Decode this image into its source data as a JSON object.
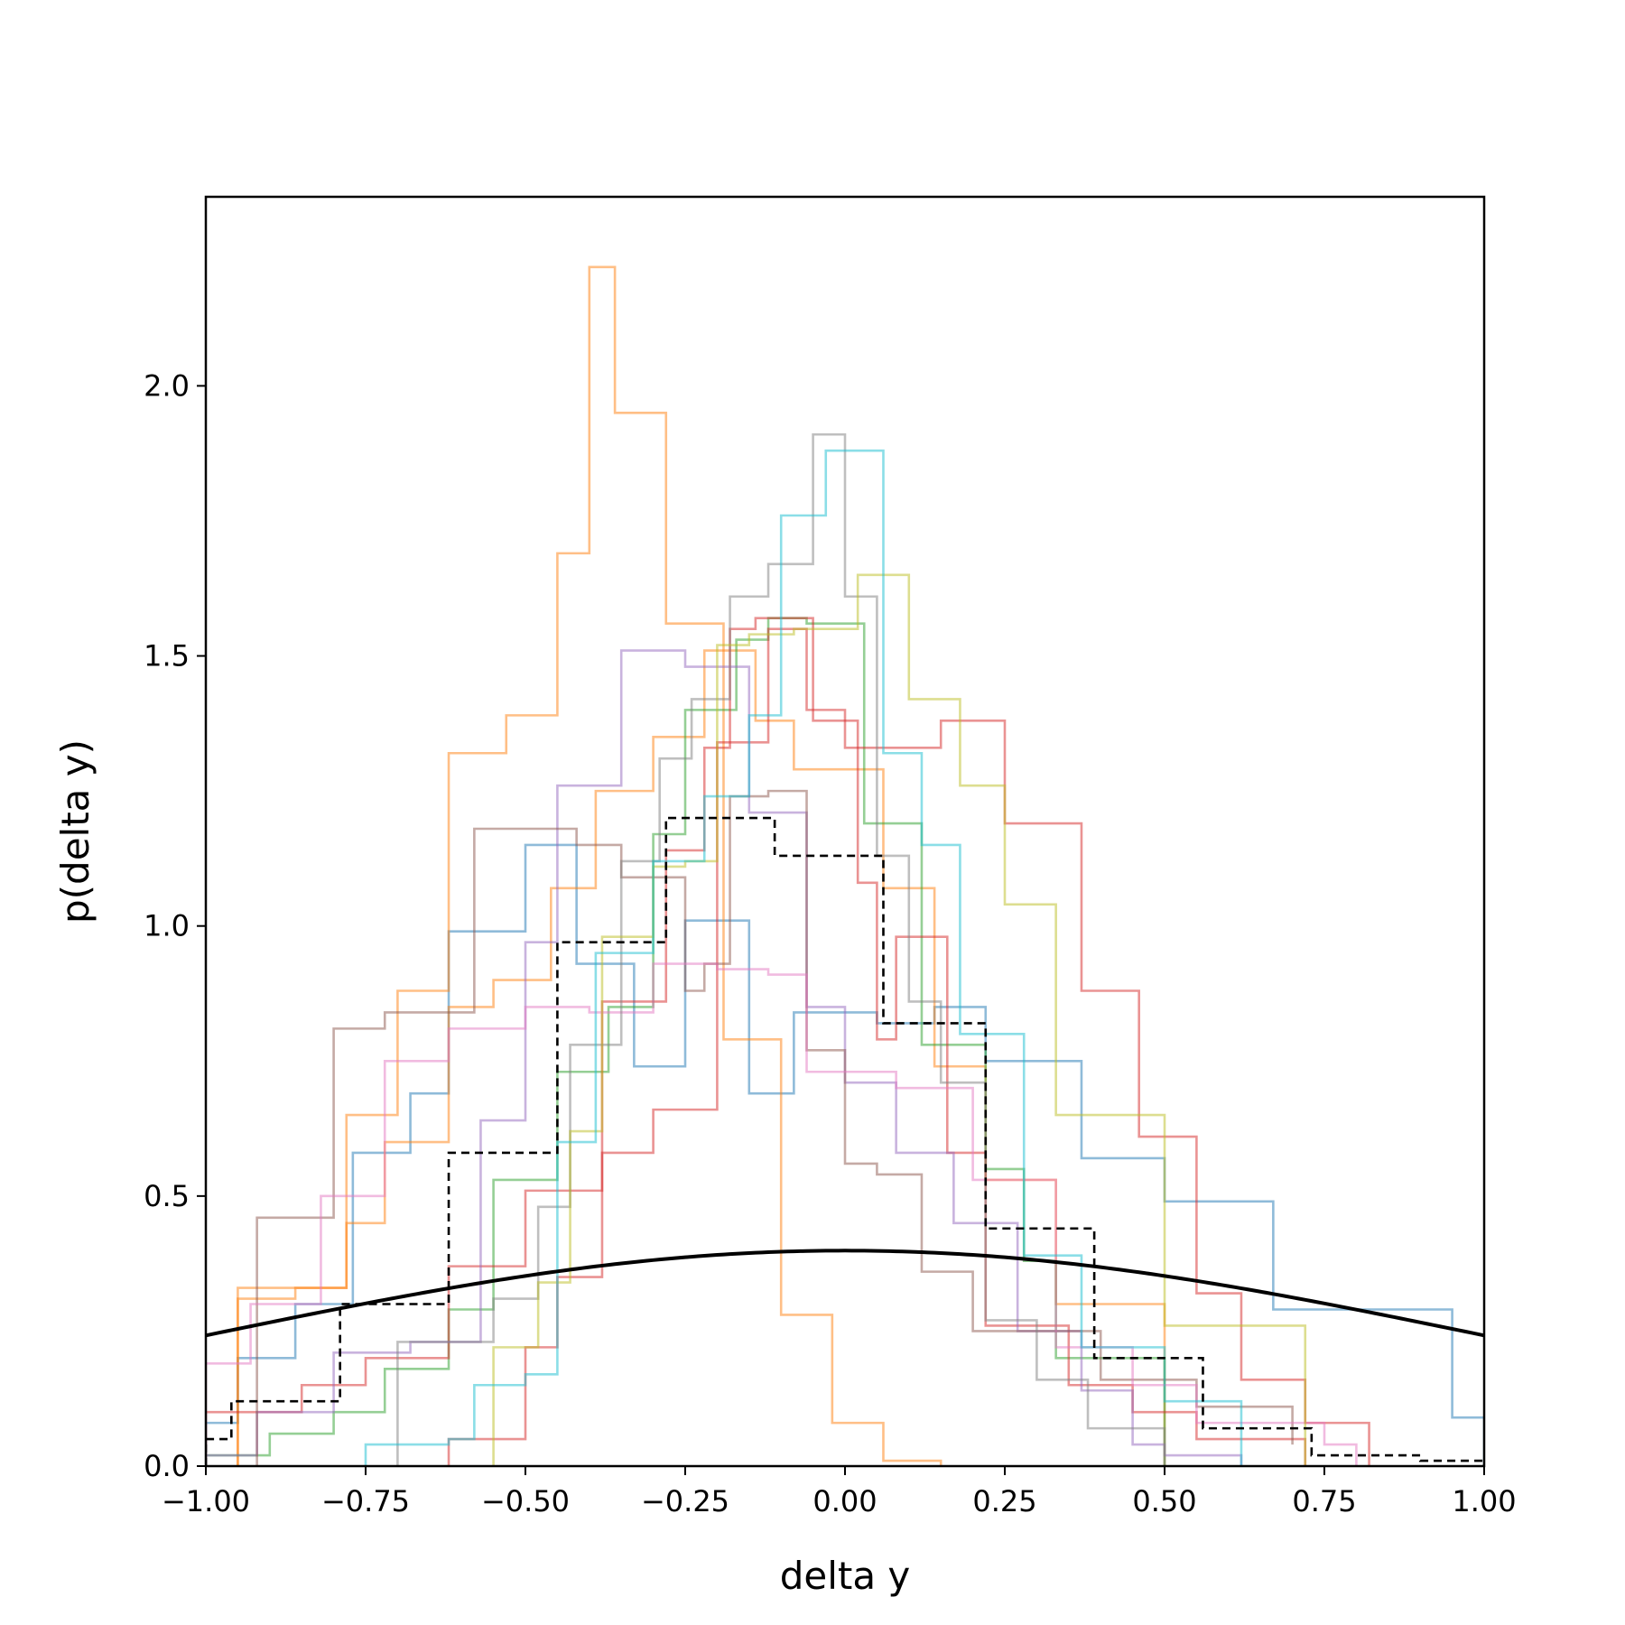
{
  "chart_data": {
    "type": "line",
    "title": "",
    "xlabel": "delta y",
    "ylabel": "p(delta y)",
    "xlim": [
      -1.0,
      1.0
    ],
    "ylim": [
      0.0,
      2.35
    ],
    "grid": false,
    "x_ticks": [
      "−1.00",
      "−0.75",
      "−0.50",
      "−0.25",
      "0.00",
      "0.25",
      "0.50",
      "0.75",
      "1.00"
    ],
    "y_ticks": [
      "0.0",
      "0.5",
      "1.0",
      "1.5",
      "2.0"
    ],
    "series": [
      {
        "style": "step",
        "color": "#1f77b4",
        "edges": [
          -1.0,
          -0.95,
          -0.86,
          -0.77,
          -0.68,
          -0.62,
          -0.5,
          -0.42,
          -0.33,
          -0.25,
          -0.15,
          -0.08,
          0.05,
          0.14,
          0.22,
          0.37,
          0.5,
          0.67,
          0.95,
          1.0
        ],
        "values": [
          0.08,
          0.2,
          0.3,
          0.58,
          0.69,
          0.99,
          1.15,
          0.93,
          0.74,
          1.01,
          0.69,
          0.84,
          0.82,
          0.85,
          0.75,
          0.57,
          0.49,
          0.29,
          0.09
        ]
      },
      {
        "style": "step",
        "color": "#ff7f0e",
        "edges": [
          -0.95,
          -0.78,
          -0.7,
          -0.62,
          -0.53,
          -0.45,
          -0.4,
          -0.36,
          -0.28,
          -0.19,
          -0.1,
          -0.02,
          0.06,
          0.15
        ],
        "values": [
          0.33,
          0.65,
          0.88,
          1.32,
          1.39,
          1.69,
          2.22,
          1.95,
          1.56,
          0.79,
          0.28,
          0.08,
          0.01
        ]
      },
      {
        "style": "step",
        "color": "#ff7f0e",
        "edges": [
          -0.95,
          -0.86,
          -0.78,
          -0.72,
          -0.62,
          -0.55,
          -0.46,
          -0.39,
          -0.3,
          -0.22,
          -0.14,
          -0.08,
          0.06,
          0.14,
          0.22,
          0.33,
          0.5
        ],
        "values": [
          0.31,
          0.33,
          0.45,
          0.6,
          0.85,
          0.9,
          1.07,
          1.25,
          1.35,
          1.51,
          1.38,
          1.29,
          1.07,
          0.74,
          0.53,
          0.3
        ]
      },
      {
        "style": "step",
        "color": "#2ca02c",
        "edges": [
          -1.0,
          -0.9,
          -0.8,
          -0.72,
          -0.62,
          -0.55,
          -0.45,
          -0.37,
          -0.3,
          -0.25,
          -0.17,
          -0.12,
          -0.06,
          0.03,
          0.12,
          0.22,
          0.28,
          0.33,
          0.5
        ],
        "values": [
          0.02,
          0.06,
          0.1,
          0.18,
          0.29,
          0.53,
          0.73,
          0.85,
          1.17,
          1.4,
          1.53,
          1.57,
          1.56,
          1.19,
          0.78,
          0.55,
          0.38,
          0.2
        ]
      },
      {
        "style": "step",
        "color": "#d62728",
        "edges": [
          -1.0,
          -0.85,
          -0.75,
          -0.62,
          -0.5,
          -0.38,
          -0.28,
          -0.22,
          -0.18,
          -0.14,
          -0.05,
          0.02,
          0.05,
          0.08,
          0.16,
          0.22,
          0.35,
          0.45,
          0.55,
          0.72
        ],
        "values": [
          0.1,
          0.15,
          0.2,
          0.37,
          0.51,
          0.86,
          1.14,
          1.33,
          1.55,
          1.57,
          1.38,
          1.08,
          0.79,
          0.98,
          0.58,
          0.26,
          0.15,
          0.1,
          0.05
        ]
      },
      {
        "style": "step",
        "color": "#d62728",
        "edges": [
          -0.62,
          -0.5,
          -0.45,
          -0.38,
          -0.3,
          -0.2,
          -0.12,
          -0.06,
          0.0,
          0.07,
          0.15,
          0.25,
          0.37,
          0.46,
          0.55,
          0.62,
          0.72,
          0.82
        ],
        "values": [
          0.05,
          0.22,
          0.35,
          0.58,
          0.66,
          1.34,
          1.55,
          1.4,
          1.33,
          1.33,
          1.38,
          1.19,
          0.88,
          0.61,
          0.32,
          0.16,
          0.08
        ]
      },
      {
        "style": "step",
        "color": "#9467bd",
        "edges": [
          -1.0,
          -0.92,
          -0.8,
          -0.68,
          -0.57,
          -0.5,
          -0.45,
          -0.35,
          -0.25,
          -0.15,
          -0.06,
          0.0,
          0.08,
          0.17,
          0.27,
          0.37,
          0.45,
          0.5,
          0.62
        ],
        "values": [
          0.02,
          0.1,
          0.21,
          0.23,
          0.64,
          0.97,
          1.26,
          1.51,
          1.48,
          1.21,
          0.85,
          0.71,
          0.58,
          0.45,
          0.25,
          0.14,
          0.04,
          0.02
        ]
      },
      {
        "style": "step",
        "color": "#8c564b",
        "edges": [
          -0.92,
          -0.8,
          -0.72,
          -0.58,
          -0.42,
          -0.35,
          -0.25,
          -0.22,
          -0.18,
          -0.12,
          -0.06,
          0.0,
          0.05,
          0.12,
          0.2,
          0.28,
          0.4,
          0.55,
          0.7
        ],
        "values": [
          0.46,
          0.81,
          0.84,
          1.18,
          1.15,
          1.09,
          0.88,
          0.93,
          1.24,
          1.25,
          0.77,
          0.56,
          0.54,
          0.36,
          0.25,
          0.25,
          0.16,
          0.11,
          0.04
        ]
      },
      {
        "style": "step",
        "color": "#e377c2",
        "edges": [
          -1.0,
          -0.93,
          -0.82,
          -0.72,
          -0.62,
          -0.5,
          -0.4,
          -0.3,
          -0.2,
          -0.12,
          -0.06,
          0.08,
          0.2,
          0.33,
          0.45,
          0.55,
          0.75,
          0.8
        ],
        "values": [
          0.19,
          0.3,
          0.5,
          0.75,
          0.81,
          0.85,
          0.84,
          0.93,
          0.92,
          0.91,
          0.73,
          0.7,
          0.53,
          0.22,
          0.15,
          0.08,
          0.04
        ]
      },
      {
        "style": "step",
        "color": "#7f7f7f",
        "edges": [
          -0.7,
          -0.55,
          -0.48,
          -0.43,
          -0.35,
          -0.29,
          -0.24,
          -0.18,
          -0.12,
          -0.05,
          0.0,
          0.05,
          0.1,
          0.15,
          0.22,
          0.3,
          0.38,
          0.5
        ],
        "values": [
          0.23,
          0.31,
          0.48,
          0.78,
          1.12,
          1.31,
          1.42,
          1.61,
          1.67,
          1.91,
          1.61,
          1.13,
          0.86,
          0.71,
          0.27,
          0.16,
          0.07
        ]
      },
      {
        "style": "step",
        "color": "#bcbd22",
        "edges": [
          -0.55,
          -0.48,
          -0.43,
          -0.38,
          -0.3,
          -0.25,
          -0.2,
          -0.15,
          -0.08,
          0.02,
          0.1,
          0.18,
          0.25,
          0.33,
          0.5,
          0.72
        ],
        "values": [
          0.22,
          0.34,
          0.62,
          0.98,
          1.11,
          1.12,
          1.52,
          1.54,
          1.55,
          1.65,
          1.42,
          1.26,
          1.04,
          0.65,
          0.26
        ]
      },
      {
        "style": "step",
        "color": "#17becf",
        "edges": [
          -0.75,
          -0.62,
          -0.58,
          -0.5,
          -0.45,
          -0.39,
          -0.3,
          -0.22,
          -0.15,
          -0.1,
          -0.03,
          0.06,
          0.12,
          0.18,
          0.28,
          0.37,
          0.5,
          0.62
        ],
        "values": [
          0.04,
          0.05,
          0.15,
          0.17,
          0.6,
          0.95,
          1.12,
          1.24,
          1.39,
          1.76,
          1.88,
          1.32,
          1.15,
          0.8,
          0.39,
          0.22,
          0.12
        ]
      },
      {
        "style": "step",
        "color": "#000000",
        "dashed": true,
        "edges": [
          -1.0,
          -0.96,
          -0.79,
          -0.62,
          -0.45,
          -0.28,
          -0.11,
          0.06,
          0.22,
          0.39,
          0.56,
          0.73,
          0.9,
          1.0
        ],
        "values": [
          0.05,
          0.12,
          0.3,
          0.58,
          0.97,
          1.2,
          1.13,
          0.82,
          0.44,
          0.2,
          0.07,
          0.02,
          0.01
        ]
      },
      {
        "style": "curve",
        "color": "#000000",
        "function": "normal_pdf",
        "mean": 0.0,
        "std": 1.0
      }
    ]
  }
}
